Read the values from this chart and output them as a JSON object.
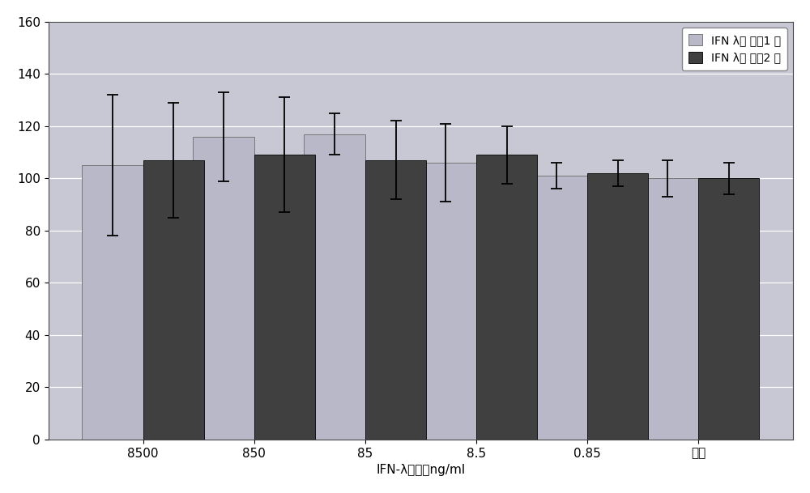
{
  "categories": [
    "8500",
    "850",
    "85",
    "8.5",
    "0.85",
    "对照"
  ],
  "series1_values": [
    105,
    116,
    117,
    106,
    101,
    100
  ],
  "series2_values": [
    107,
    109,
    107,
    109,
    102,
    100
  ],
  "series1_errors": [
    27,
    17,
    8,
    15,
    5,
    7
  ],
  "series2_errors": [
    22,
    22,
    15,
    11,
    5,
    6
  ],
  "series1_color": "#b8b8c8",
  "series2_color": "#404040",
  "series1_label": "IFN λ（ 副本1 ）",
  "series2_label": "IFN λ（ 副本2 ）",
  "xlabel": "IFN-λ浓度，ng/ml",
  "ylim": [
    0,
    160
  ],
  "yticks": [
    0,
    20,
    40,
    60,
    80,
    100,
    120,
    140,
    160
  ],
  "plot_background_color": "#c8c8d4",
  "figure_background_color": "#ffffff",
  "grid_color": "#ffffff",
  "bar_width": 0.55,
  "figsize": [
    10.0,
    6.09
  ],
  "dpi": 100,
  "legend_fontsize": 10,
  "tick_fontsize": 11,
  "xlabel_fontsize": 11
}
